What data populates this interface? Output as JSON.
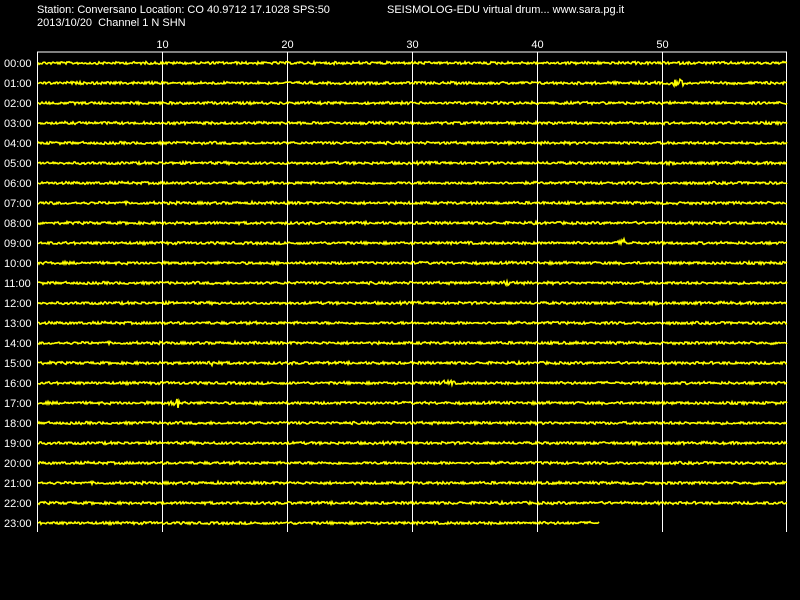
{
  "header": {
    "station_info": "Station: Conversano Location: CO 40.9712 17.1028 SPS:50",
    "app_info": "SEISMOLOG-EDU virtual drum... www.sara.pg.it",
    "date_channel": "2013/10/20  Channel 1 N SHN"
  },
  "colors": {
    "background": "#000000",
    "trace": "#ffff00",
    "grid": "#ffffff",
    "text": "#ffffff"
  },
  "chart_data": {
    "type": "line",
    "title": "Station: Conversano Location: CO 40.9712 17.1028 SPS:50",
    "subtitle": "2013/10/20  Channel 1 N SHN",
    "xlabel": "",
    "ylabel": "",
    "xlim": [
      0,
      60
    ],
    "x_ticks": [
      10,
      20,
      30,
      40,
      50
    ],
    "x_tick_labels": [
      "10",
      "20",
      "30",
      "40",
      "50"
    ],
    "grid": true,
    "rows": [
      "00:00",
      "01:00",
      "02:00",
      "03:00",
      "04:00",
      "05:00",
      "06:00",
      "07:00",
      "08:00",
      "09:00",
      "10:00",
      "11:00",
      "12:00",
      "13:00",
      "14:00",
      "15:00",
      "16:00",
      "17:00",
      "18:00",
      "19:00",
      "20:00",
      "21:00",
      "22:00",
      "23:00"
    ],
    "last_row_end_minute": 45,
    "events": [
      {
        "row": "01:00",
        "minute": 51.2,
        "amplitude": 4
      },
      {
        "row": "09:00",
        "minute": 47.0,
        "amplitude": 3
      },
      {
        "row": "11:00",
        "minute": 37.8,
        "amplitude": 2
      },
      {
        "row": "15:00",
        "minute": 14.0,
        "amplitude": 2
      },
      {
        "row": "16:00",
        "minute": 32.8,
        "amplitude": 2
      },
      {
        "row": "17:00",
        "minute": 11.2,
        "amplitude": 4
      }
    ]
  }
}
